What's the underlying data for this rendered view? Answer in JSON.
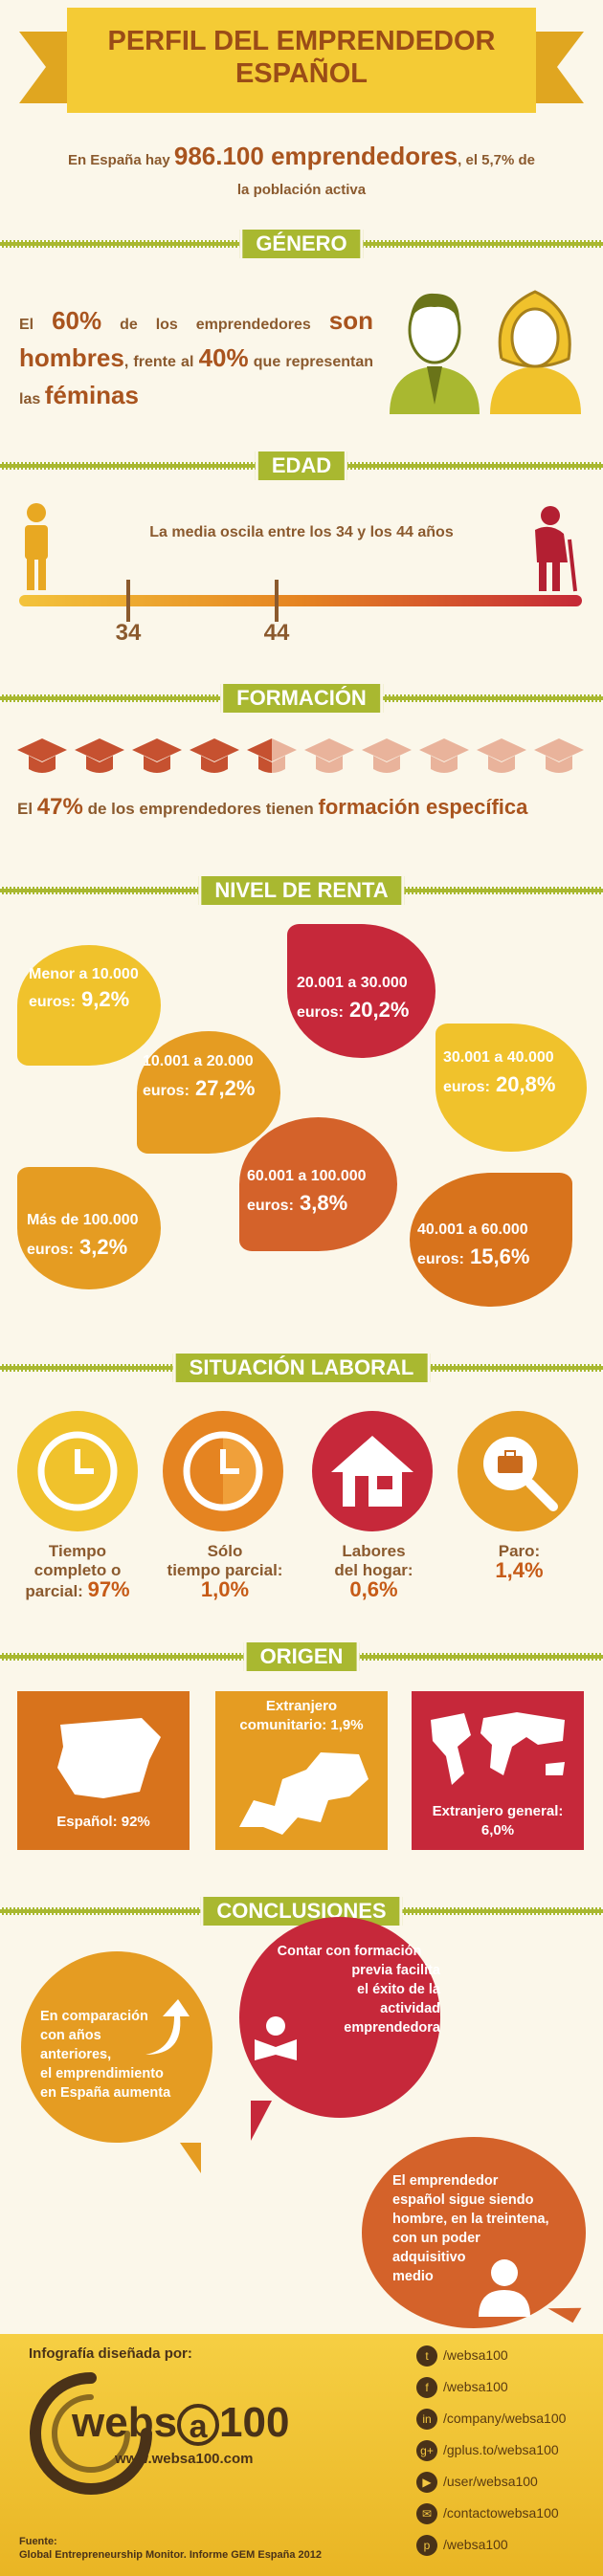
{
  "header": {
    "title_line1": "PERFIL DEL EMPRENDEDOR",
    "title_line2": "ESPAÑOL",
    "intro_pre": "En España hay",
    "intro_num": "986.100 emprendedores",
    "intro_post": ", el 5,7% de",
    "intro_line2": "la población activa"
  },
  "genero": {
    "section": "GÉNERO",
    "p1": "El",
    "p2": "60%",
    "p3": "de los emprendedores",
    "p4": "son",
    "p5": "hombres",
    "p6": ", frente al",
    "p7": "40%",
    "p8": "que",
    "p9": "representan las",
    "p10": "féminas"
  },
  "edad": {
    "section": "EDAD",
    "text": "La media oscila entre los 34 y los 44 años",
    "tick1": "34",
    "tick2": "44"
  },
  "formacion": {
    "section": "FORMACIÓN",
    "caps_filled": 4.5,
    "caps_total": 10,
    "t1": "El",
    "t2": "47%",
    "t3": "de los emprendedores tienen",
    "t4": "formación específica"
  },
  "renta": {
    "section": "NIVEL DE RENTA",
    "items": [
      {
        "label": "Menor a 10.000",
        "label2": "euros:",
        "value": "9,2%"
      },
      {
        "label": "20.001 a 30.000",
        "label2": "euros:",
        "value": "20,2%"
      },
      {
        "label": "10.001 a 20.000",
        "label2": "euros:",
        "value": "27,2%"
      },
      {
        "label": "30.001 a 40.000",
        "label2": "euros:",
        "value": "20,8%"
      },
      {
        "label": "Más de 100.000",
        "label2": "euros:",
        "value": "3,2%"
      },
      {
        "label": "60.001 a 100.000",
        "label2": "euros:",
        "value": "3,8%"
      },
      {
        "label": "40.001 a 60.000",
        "label2": "euros:",
        "value": "15,6%"
      }
    ]
  },
  "laboral": {
    "section": "SITUACIÓN LABORAL",
    "items": [
      {
        "l1": "Tiempo",
        "l2": "completo o",
        "l3": "parcial:",
        "value": "97%"
      },
      {
        "l1": "Sólo",
        "l2": "tiempo parcial:",
        "l3": "",
        "value": "1,0%"
      },
      {
        "l1": "Labores",
        "l2": "del hogar:",
        "l3": "",
        "value": "0,6%"
      },
      {
        "l1": "Paro:",
        "l2": "",
        "l3": "",
        "value": "1,4%"
      }
    ]
  },
  "origen": {
    "section": "ORIGEN",
    "espanol": "Español: 92%",
    "comunitario1": "Extranjero",
    "comunitario2": "comunitario: 1,9%",
    "general1": "Extranjero general:",
    "general2": "6,0%"
  },
  "conclusiones": {
    "section": "CONCLUSIONES",
    "c1": [
      "En comparación",
      "con años",
      "anteriores,",
      "el emprendimiento",
      "en España aumenta"
    ],
    "c2": [
      "Contar con formación",
      "previa facilita",
      "el éxito de la",
      "actividad",
      "emprendedora"
    ],
    "c3": [
      "El emprendedor",
      "español sigue siendo",
      "hombre, en la treintena,",
      "con un poder",
      "adquisitivo",
      "medio"
    ]
  },
  "footer": {
    "designed": "Infografía diseñada por:",
    "logo_a": "webs",
    "logo_b": "a",
    "logo_c": "100",
    "url": "www.websa100.com",
    "fuente1": "Fuente:",
    "fuente2": "Global Entrepreneurship Monitor. Informe GEM España 2012",
    "social": [
      {
        "icon": "twitter-icon",
        "glyph": "t",
        "text": "/websa100"
      },
      {
        "icon": "facebook-icon",
        "glyph": "f",
        "text": "/websa100"
      },
      {
        "icon": "linkedin-icon",
        "glyph": "in",
        "text": "/company/websa100"
      },
      {
        "icon": "googleplus-icon",
        "glyph": "g+",
        "text": "/gplus.to/websa100"
      },
      {
        "icon": "youtube-icon",
        "glyph": "▶",
        "text": "/user/websa100"
      },
      {
        "icon": "tuenti-icon",
        "glyph": "✉",
        "text": "/contactowebsa100"
      },
      {
        "icon": "pinterest-icon",
        "glyph": "p",
        "text": "/websa100"
      }
    ]
  },
  "colors": {
    "green": "#a9b830",
    "yellow": "#f0c22c",
    "orange": "#d8731c",
    "red": "#c6283a",
    "brown": "#a9541e"
  }
}
